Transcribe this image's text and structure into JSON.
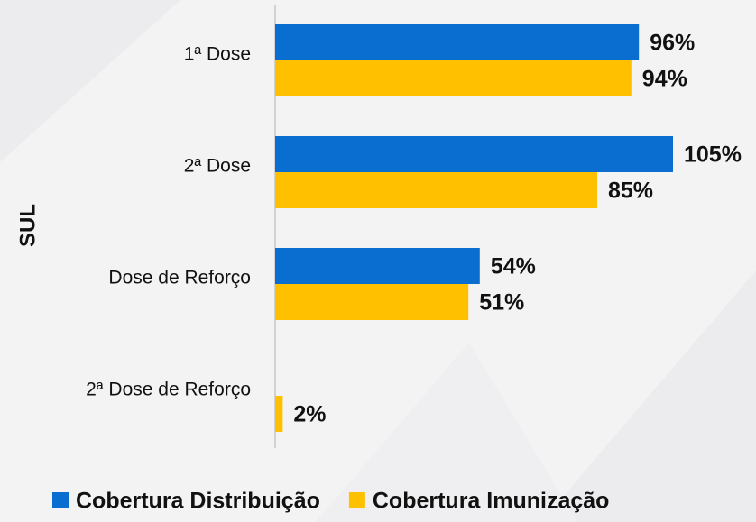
{
  "chart_data": {
    "type": "bar",
    "orientation": "horizontal",
    "axis_label": "SUL",
    "categories": [
      "1ª Dose",
      "2ª Dose",
      "Dose de Reforço",
      "2ª Dose de Reforço"
    ],
    "series": [
      {
        "name": "Cobertura Distribuição",
        "color": "#0a6ed1",
        "values": [
          96,
          105,
          54,
          null
        ],
        "value_labels": [
          "96%",
          "105%",
          "54%",
          null
        ]
      },
      {
        "name": "Cobertura Imunização",
        "color": "#ffc000",
        "values": [
          94,
          85,
          51,
          2
        ],
        "value_labels": [
          "94%",
          "85%",
          "51%",
          "2%"
        ]
      }
    ],
    "xlim": [
      0,
      110
    ],
    "legend": "bottom"
  }
}
